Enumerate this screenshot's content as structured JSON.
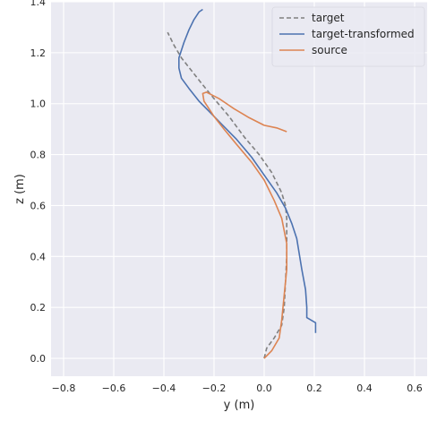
{
  "chart_data": {
    "type": "line",
    "xlabel": "y (m)",
    "ylabel": "z (m)",
    "xlim": [
      -0.85,
      0.65
    ],
    "ylim": [
      -0.07,
      1.4
    ],
    "xticks": [
      -0.8,
      -0.6,
      -0.4,
      -0.2,
      0.0,
      0.2,
      0.4,
      0.6
    ],
    "xtick_labels": [
      "−0.8",
      "−0.6",
      "−0.4",
      "−0.2",
      "0.0",
      "0.2",
      "0.4",
      "0.6"
    ],
    "yticks": [
      0.0,
      0.2,
      0.4,
      0.6,
      0.8,
      1.0,
      1.2,
      1.4
    ],
    "ytick_labels": [
      "0.0",
      "0.2",
      "0.4",
      "0.6",
      "0.8",
      "1.0",
      "1.2",
      "1.4"
    ],
    "grid": true,
    "legend_position": "top-right",
    "colors": {
      "background": "#eaeaf2",
      "grid": "#ffffff",
      "text": "#262626"
    },
    "series": [
      {
        "name": "target",
        "color": "#808080",
        "dash": "dashed",
        "x": [
          0.0,
          0.01,
          0.04,
          0.07,
          0.08,
          0.085,
          0.09,
          0.09,
          0.09,
          0.085,
          0.07,
          0.03,
          -0.02,
          -0.08,
          -0.14,
          -0.2,
          -0.25,
          -0.29,
          -0.33,
          -0.36,
          -0.385
        ],
        "y": [
          0.0,
          0.04,
          0.08,
          0.13,
          0.2,
          0.3,
          0.4,
          0.5,
          0.55,
          0.6,
          0.65,
          0.73,
          0.8,
          0.87,
          0.95,
          1.02,
          1.08,
          1.13,
          1.18,
          1.23,
          1.28
        ]
      },
      {
        "name": "target-transformed",
        "color": "#4c72b0",
        "dash": "solid",
        "x": [
          0.205,
          0.205,
          0.17,
          0.17,
          0.165,
          0.15,
          0.13,
          0.11,
          0.085,
          0.05,
          0.0,
          -0.05,
          -0.11,
          -0.17,
          -0.21,
          -0.26,
          -0.3,
          -0.33,
          -0.34,
          -0.34,
          -0.32,
          -0.3,
          -0.28,
          -0.26,
          -0.245
        ],
        "y": [
          0.1,
          0.14,
          0.16,
          0.2,
          0.27,
          0.35,
          0.47,
          0.53,
          0.59,
          0.65,
          0.72,
          0.79,
          0.86,
          0.92,
          0.96,
          1.01,
          1.06,
          1.1,
          1.14,
          1.18,
          1.24,
          1.29,
          1.33,
          1.36,
          1.37
        ]
      },
      {
        "name": "source",
        "color": "#dd8452",
        "dash": "solid",
        "x": [
          0.0,
          0.03,
          0.06,
          0.07,
          0.08,
          0.09,
          0.09,
          0.08,
          0.07,
          0.04,
          0.0,
          -0.05,
          -0.11,
          -0.16,
          -0.2,
          -0.22,
          -0.24,
          -0.245,
          -0.23,
          -0.18,
          -0.12,
          -0.06,
          0.0,
          0.05,
          0.09
        ],
        "y": [
          0.0,
          0.03,
          0.08,
          0.15,
          0.25,
          0.35,
          0.45,
          0.5,
          0.55,
          0.62,
          0.7,
          0.77,
          0.84,
          0.9,
          0.95,
          0.98,
          1.01,
          1.04,
          1.045,
          1.02,
          0.98,
          0.945,
          0.915,
          0.905,
          0.89
        ]
      }
    ]
  }
}
